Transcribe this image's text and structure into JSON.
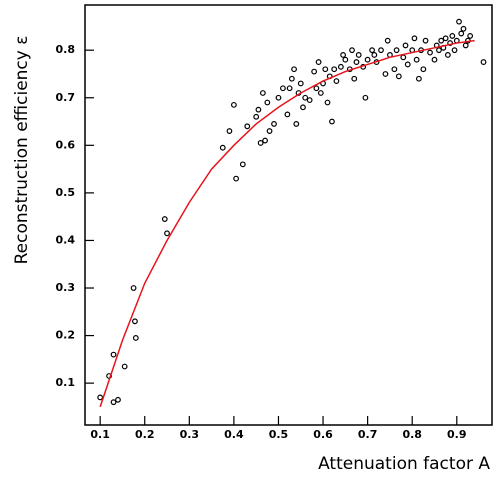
{
  "chart_data": {
    "type": "scatter",
    "x_label": "Attenuation factor A",
    "y_label": "Reconstruction efficiency ε",
    "xlim": [
      0.066,
      0.979
    ],
    "ylim": [
      0.012,
      0.895
    ],
    "xticks": [
      0.1,
      0.2,
      0.3,
      0.4,
      0.5,
      0.6,
      0.7,
      0.8,
      0.9
    ],
    "yticks": [
      0.1,
      0.2,
      0.3,
      0.4,
      0.5,
      0.6,
      0.7,
      0.8
    ],
    "series": [
      {
        "type": "scatter",
        "color": "#000000",
        "x": [
          0.1,
          0.12,
          0.13,
          0.13,
          0.14,
          0.155,
          0.175,
          0.178,
          0.18,
          0.245,
          0.25,
          0.375,
          0.39,
          0.4,
          0.405,
          0.42,
          0.43,
          0.45,
          0.455,
          0.46,
          0.465,
          0.47,
          0.475,
          0.48,
          0.49,
          0.5,
          0.51,
          0.52,
          0.525,
          0.53,
          0.535,
          0.54,
          0.545,
          0.55,
          0.555,
          0.56,
          0.57,
          0.58,
          0.585,
          0.59,
          0.595,
          0.6,
          0.605,
          0.61,
          0.615,
          0.62,
          0.625,
          0.63,
          0.64,
          0.645,
          0.65,
          0.66,
          0.665,
          0.67,
          0.675,
          0.68,
          0.69,
          0.695,
          0.7,
          0.71,
          0.715,
          0.72,
          0.73,
          0.74,
          0.745,
          0.75,
          0.76,
          0.765,
          0.77,
          0.78,
          0.785,
          0.79,
          0.8,
          0.805,
          0.81,
          0.815,
          0.82,
          0.825,
          0.83,
          0.84,
          0.85,
          0.855,
          0.86,
          0.865,
          0.87,
          0.875,
          0.88,
          0.885,
          0.89,
          0.895,
          0.9,
          0.905,
          0.91,
          0.915,
          0.92,
          0.925,
          0.93,
          0.96
        ],
        "values": [
          0.07,
          0.115,
          0.16,
          0.06,
          0.065,
          0.135,
          0.3,
          0.23,
          0.195,
          0.445,
          0.415,
          0.595,
          0.63,
          0.685,
          0.53,
          0.56,
          0.64,
          0.66,
          0.675,
          0.605,
          0.71,
          0.61,
          0.69,
          0.63,
          0.645,
          0.7,
          0.72,
          0.665,
          0.72,
          0.74,
          0.76,
          0.645,
          0.71,
          0.73,
          0.68,
          0.7,
          0.695,
          0.755,
          0.72,
          0.775,
          0.71,
          0.73,
          0.76,
          0.69,
          0.745,
          0.65,
          0.76,
          0.735,
          0.765,
          0.79,
          0.78,
          0.76,
          0.8,
          0.74,
          0.775,
          0.79,
          0.765,
          0.7,
          0.78,
          0.8,
          0.79,
          0.775,
          0.8,
          0.75,
          0.82,
          0.79,
          0.76,
          0.8,
          0.745,
          0.785,
          0.81,
          0.77,
          0.8,
          0.825,
          0.78,
          0.74,
          0.8,
          0.76,
          0.82,
          0.795,
          0.78,
          0.81,
          0.8,
          0.82,
          0.805,
          0.825,
          0.79,
          0.815,
          0.83,
          0.8,
          0.82,
          0.86,
          0.835,
          0.845,
          0.81,
          0.82,
          0.83,
          0.775
        ]
      },
      {
        "type": "line",
        "color": "#e8141c",
        "x": [
          0.1,
          0.15,
          0.2,
          0.25,
          0.3,
          0.35,
          0.4,
          0.45,
          0.5,
          0.55,
          0.6,
          0.65,
          0.7,
          0.75,
          0.8,
          0.85,
          0.9,
          0.94
        ],
        "values": [
          0.05,
          0.19,
          0.31,
          0.4,
          0.48,
          0.55,
          0.6,
          0.645,
          0.68,
          0.71,
          0.735,
          0.755,
          0.77,
          0.785,
          0.795,
          0.805,
          0.815,
          0.82
        ]
      }
    ]
  }
}
